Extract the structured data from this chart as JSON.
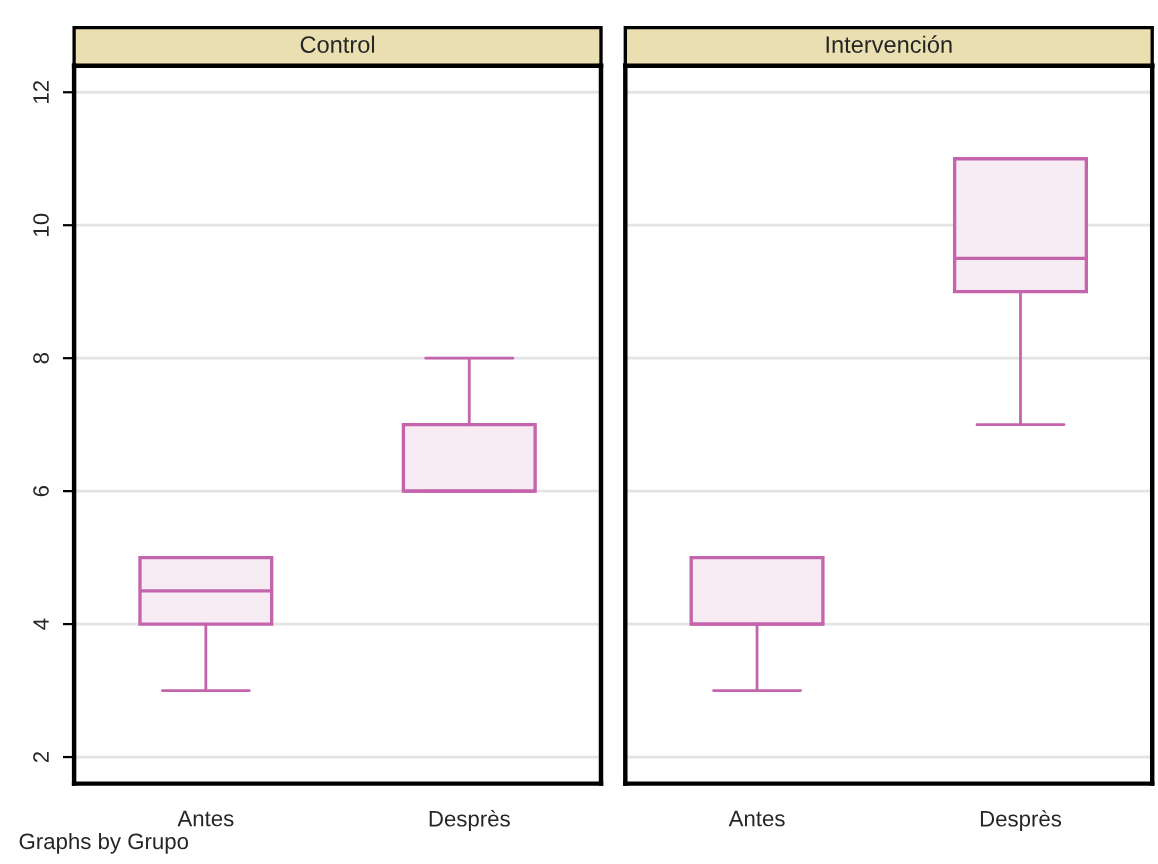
{
  "chart_data": [
    {
      "type": "box",
      "title": "Control",
      "categories": [
        "Antes",
        "Desprès"
      ],
      "series": [
        {
          "color": "#c464ac",
          "boxes": [
            {
              "low": 3,
              "q1": 4,
              "median": 4.5,
              "q3": 5,
              "high": 5
            },
            {
              "low": 6,
              "q1": 6,
              "median": 6,
              "q3": 7,
              "high": 8
            }
          ]
        }
      ],
      "ylim": [
        1.6,
        12.4
      ],
      "yticks": [
        2,
        4,
        6,
        8,
        10,
        12
      ],
      "grid": "y",
      "annotations": [
        "Graphs by Grupo"
      ]
    },
    {
      "type": "box",
      "title": "Intervención",
      "categories": [
        "Antes",
        "Desprès"
      ],
      "series": [
        {
          "color": "#c464ac",
          "boxes": [
            {
              "low": 3,
              "q1": 4,
              "median": 4,
              "q3": 5,
              "high": 5
            },
            {
              "low": 7,
              "q1": 9,
              "median": 9.5,
              "q3": 11,
              "high": 11
            }
          ]
        }
      ],
      "ylim": [
        1.6,
        12.4
      ],
      "yticks": [
        2,
        4,
        6,
        8,
        10,
        12
      ],
      "grid": "y",
      "tick_labels": "x"
    }
  ]
}
